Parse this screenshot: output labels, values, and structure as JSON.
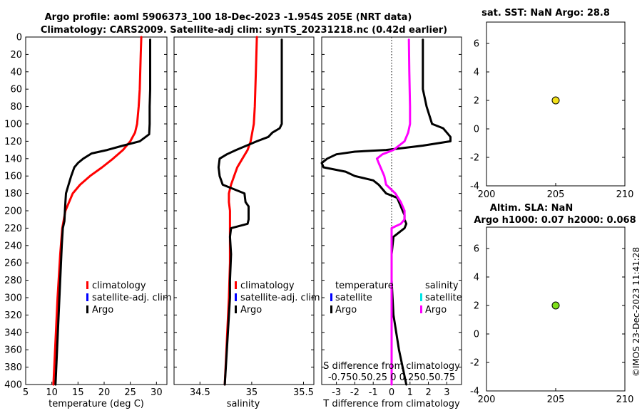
{
  "header": {
    "title_line1": "Argo profile: aoml 5906373_100 18-Dec-2023 -1.954S 205E (NRT data)",
    "title_line2": "Climatology: CARS2009. Satellite-adj clim: synTS_20231218.nc (0.42d earlier)",
    "sst_title": "sat. SST: NaN Argo: 28.8",
    "sla_title1": "Altim. SLA: NaN",
    "sla_title2": "Argo h1000: 0.07 h2000: 0.068",
    "credit": "©IMOS 23-Dec-2023 11:41:28"
  },
  "colors": {
    "climatology": "#ff0000",
    "satellite": "#0000ff",
    "argo": "#000000",
    "salinity_argo": "#ff00ff",
    "salinity_satellite": "#00e5e5",
    "sst_marker": "#f2e01a",
    "sla_marker": "#7fe01a"
  },
  "legend": {
    "climatology": "climatology",
    "satellite_adj": "satellite-adj. clim",
    "argo": "Argo",
    "temperature": "temperature",
    "salinity": "salinity",
    "satellite": "satellite"
  },
  "chart_data": [
    {
      "type": "line",
      "panel": "temperature",
      "xlabel": "temperature (deg C)",
      "xlim": [
        5,
        32
      ],
      "xticks": [
        "5",
        "10",
        "15",
        "20",
        "25",
        "30"
      ],
      "ylim": [
        0,
        400
      ],
      "yticks": [
        "0",
        "20",
        "40",
        "60",
        "80",
        "100",
        "120",
        "140",
        "160",
        "180",
        "200",
        "220",
        "240",
        "260",
        "280",
        "300",
        "320",
        "340",
        "360",
        "380",
        "400"
      ],
      "series": [
        {
          "name": "climatology",
          "depth": [
            0,
            20,
            40,
            60,
            80,
            100,
            110,
            120,
            130,
            140,
            150,
            160,
            170,
            180,
            200,
            220,
            250,
            300,
            350,
            400
          ],
          "values": [
            27.1,
            27.0,
            26.9,
            26.8,
            26.6,
            26.3,
            25.9,
            25.0,
            23.6,
            21.7,
            19.6,
            17.3,
            15.4,
            14.0,
            12.6,
            12.0,
            11.6,
            11.1,
            10.7,
            10.3
          ]
        },
        {
          "name": "Argo",
          "depth": [
            3,
            20,
            40,
            60,
            80,
            100,
            112,
            120,
            125,
            130,
            134,
            140,
            145,
            150,
            155,
            160,
            170,
            180,
            190,
            200,
            212,
            220,
            240,
            280,
            320,
            360,
            400
          ],
          "values": [
            28.8,
            28.8,
            28.8,
            28.8,
            28.7,
            28.7,
            28.6,
            26.8,
            23.6,
            20.6,
            17.6,
            16.0,
            15.0,
            14.3,
            14.0,
            13.7,
            13.2,
            12.7,
            12.6,
            12.5,
            12.4,
            12.1,
            11.9,
            11.6,
            11.3,
            11.0,
            10.7
          ]
        }
      ]
    },
    {
      "type": "line",
      "panel": "salinity",
      "xlabel": "salinity",
      "xlim": [
        34.25,
        35.6
      ],
      "xticks": [
        "34.5",
        "35",
        "35.5"
      ],
      "ylim": [
        0,
        400
      ],
      "series": [
        {
          "name": "climatology",
          "depth": [
            0,
            40,
            80,
            100,
            120,
            130,
            140,
            150,
            160,
            170,
            180,
            190,
            200,
            220,
            260,
            300,
            350,
            400
          ],
          "values": [
            35.05,
            35.04,
            35.03,
            35.02,
            34.99,
            34.96,
            34.91,
            34.86,
            34.83,
            34.8,
            34.78,
            34.78,
            34.79,
            34.79,
            34.79,
            34.78,
            34.76,
            34.74
          ]
        },
        {
          "name": "Argo",
          "depth": [
            3,
            40,
            80,
            100,
            105,
            110,
            115,
            120,
            125,
            130,
            135,
            140,
            150,
            160,
            170,
            180,
            190,
            195,
            200,
            210,
            215,
            220,
            230,
            250,
            280,
            300,
            340,
            380,
            400
          ],
          "values": [
            35.29,
            35.29,
            35.29,
            35.29,
            35.27,
            35.2,
            35.16,
            35.05,
            34.95,
            34.85,
            34.76,
            34.69,
            34.68,
            34.69,
            34.72,
            34.93,
            34.94,
            34.97,
            34.97,
            34.97,
            34.96,
            34.8,
            34.79,
            34.8,
            34.79,
            34.79,
            34.77,
            34.75,
            34.74
          ]
        }
      ]
    },
    {
      "type": "line",
      "panel": "difference",
      "xlabel": "T difference from climatology",
      "xlabel2": "S difference from climatology",
      "xlim": [
        -3.8,
        3.8
      ],
      "xticks": [
        "-3",
        "-2",
        "-1",
        "0",
        "1",
        "2",
        "3"
      ],
      "xticks_S": "-0.750.50.25  0  0.250.50.75",
      "ylim": [
        0,
        400
      ],
      "series": [
        {
          "name": "temperature Argo",
          "depth": [
            3,
            20,
            40,
            60,
            80,
            100,
            105,
            110,
            115,
            120,
            125,
            128,
            130,
            132,
            135,
            140,
            145,
            150,
            155,
            160,
            165,
            170,
            175,
            180,
            185,
            190,
            195,
            200,
            205,
            210,
            215,
            220,
            230,
            250,
            280,
            320,
            360,
            400
          ],
          "values": [
            1.7,
            1.7,
            1.7,
            1.7,
            1.9,
            2.2,
            2.8,
            3.0,
            3.2,
            3.2,
            1.7,
            0.5,
            -0.3,
            -2.0,
            -3.0,
            -3.5,
            -3.8,
            -3.7,
            -2.5,
            -2.0,
            -1.0,
            -0.7,
            -0.5,
            -0.3,
            0.3,
            0.4,
            0.5,
            0.6,
            0.7,
            0.7,
            0.8,
            0.7,
            0.1,
            0.0,
            0.0,
            0.1,
            0.4,
            0.8
          ]
        },
        {
          "name": "salinity Argo",
          "depth": [
            3,
            40,
            80,
            100,
            110,
            120,
            125,
            130,
            135,
            140,
            145,
            150,
            160,
            170,
            180,
            190,
            200,
            205,
            210,
            215,
            220,
            240,
            280,
            320,
            360,
            400
          ],
          "values": [
            0.94,
            0.96,
            1.0,
            1.0,
            0.9,
            0.7,
            0.4,
            0.1,
            -0.5,
            -0.8,
            -0.7,
            -0.6,
            -0.4,
            -0.3,
            0.2,
            0.5,
            0.7,
            0.7,
            0.7,
            0.5,
            0.0,
            0.0,
            0.0,
            0.0,
            0.0,
            0.0
          ]
        }
      ]
    },
    {
      "type": "scatter",
      "panel": "sst",
      "xlim": [
        200,
        210
      ],
      "xticks": [
        "200",
        "205",
        "210"
      ],
      "ylim": [
        -4,
        7.5
      ],
      "yticks": [
        "-4",
        "-2",
        "0",
        "2",
        "4",
        "6"
      ],
      "points": [
        {
          "x": 205,
          "y": 2
        }
      ]
    },
    {
      "type": "scatter",
      "panel": "sla",
      "xlim": [
        200,
        210
      ],
      "xticks": [
        "200",
        "205",
        "210"
      ],
      "ylim": [
        -4,
        7.5
      ],
      "yticks": [
        "-4",
        "-2",
        "0",
        "2",
        "4",
        "6"
      ],
      "points": [
        {
          "x": 205,
          "y": 2
        }
      ]
    }
  ]
}
